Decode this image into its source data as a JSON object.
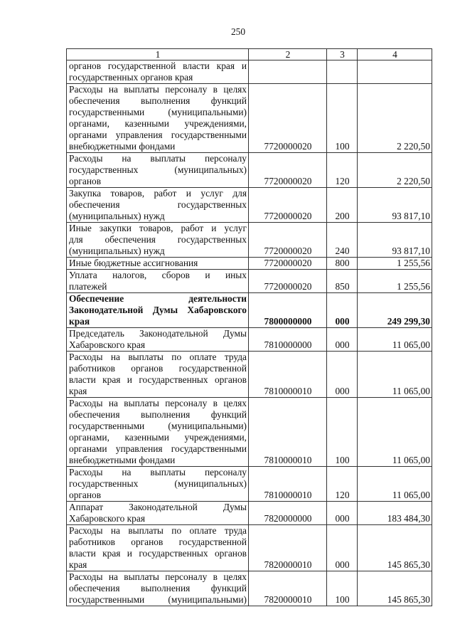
{
  "page_number": "250",
  "table": {
    "headers": [
      "1",
      "2",
      "3",
      "4"
    ],
    "rows": [
      {
        "lines": [
          "органов государственной власти края и",
          "государственных органов края"
        ],
        "code": "",
        "type": "",
        "amount": ""
      },
      {
        "lines": [
          "Расходы на выплаты персоналу в целях",
          "обеспечения выполнения функций",
          "государственными (муниципальными)",
          "органами, казенными учреждениями,",
          "органами управления государственными",
          "внебюджетными фондами"
        ],
        "code": "7720000020",
        "type": "100",
        "amount": "2 220,50"
      },
      {
        "lines": [
          "Расходы на выплаты персоналу",
          "государственных (муниципальных)",
          "органов"
        ],
        "code": "7720000020",
        "type": "120",
        "amount": "2 220,50"
      },
      {
        "lines": [
          "Закупка товаров, работ и услуг для",
          "обеспечения государственных",
          "(муниципальных) нужд"
        ],
        "code": "7720000020",
        "type": "200",
        "amount": "93 817,10"
      },
      {
        "lines": [
          "Иные закупки товаров, работ и услуг",
          "для обеспечения государственных",
          "(муниципальных) нужд"
        ],
        "code": "7720000020",
        "type": "240",
        "amount": "93 817,10"
      },
      {
        "lines": [
          "Иные бюджетные ассигнования"
        ],
        "code": "7720000020",
        "type": "800",
        "amount": "1 255,56"
      },
      {
        "lines": [
          "Уплата налогов, сборов и иных",
          "платежей"
        ],
        "code": "7720000020",
        "type": "850",
        "amount": "1 255,56"
      },
      {
        "lines": [
          "Обеспечение деятельности",
          "Законодательной Думы Хабаровского",
          "края"
        ],
        "code": "7800000000",
        "type": "000",
        "amount": "249 299,30",
        "bold": true
      },
      {
        "lines": [
          "Председатель Законодательной Думы",
          "Хабаровского края"
        ],
        "code": "7810000000",
        "type": "000",
        "amount": "11 065,00"
      },
      {
        "lines": [
          "Расходы на выплаты по оплате труда",
          "работников органов государственной",
          "власти края и государственных органов",
          "края"
        ],
        "code": "7810000010",
        "type": "000",
        "amount": "11 065,00"
      },
      {
        "lines": [
          "Расходы на выплаты персоналу в целях",
          "обеспечения выполнения функций",
          "государственными (муниципальными)",
          "органами, казенными учреждениями,",
          "органами управления государственными",
          "внебюджетными фондами"
        ],
        "code": "7810000010",
        "type": "100",
        "amount": "11 065,00"
      },
      {
        "lines": [
          "Расходы на выплаты персоналу",
          "государственных (муниципальных)",
          "органов"
        ],
        "code": "7810000010",
        "type": "120",
        "amount": "11 065,00"
      },
      {
        "lines": [
          "Аппарат Законодательной Думы",
          "Хабаровского края"
        ],
        "code": "7820000000",
        "type": "000",
        "amount": "183 484,30"
      },
      {
        "lines": [
          "Расходы на выплаты по оплате труда",
          "работников органов государственной",
          "власти края и государственных органов",
          "края"
        ],
        "code": "7820000010",
        "type": "000",
        "amount": "145 865,30"
      },
      {
        "lines": [
          "Расходы на выплаты персоналу в целях",
          "обеспечения выполнения функций",
          "государственными (муниципальными)"
        ],
        "code": "7820000010",
        "type": "100",
        "amount": "145 865,30",
        "continues": true
      }
    ]
  }
}
